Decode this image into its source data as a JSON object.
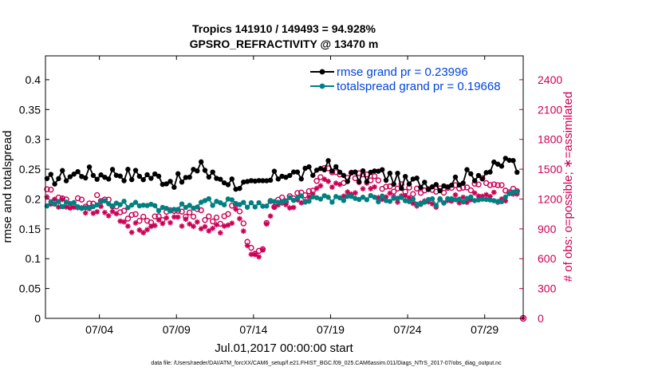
{
  "chart_data": {
    "type": "line",
    "title_line1": "Tropics 141910 / 149493 = 94.928%",
    "title_line2": "GPSRO_REFRACTIVITY @ 13470 m",
    "xlabel": "Jul.01,2017 00:00:00 start",
    "ylabel_left": "rmse and totalspread",
    "ylabel_right": "# of obs: o=possible; ∗=assimilated",
    "footnote": "data file: /Users/raeder/DAI/ATM_forcXX/CAM6_setup/f.e21.FHIST_BGC.f09_025.CAM6assim.011/Diags_NTrS_2017-07/obs_diag_output.nc",
    "x_range_days": [
      0.5,
      31.5
    ],
    "x_ticks": [
      {
        "day": 4,
        "label": "07/04"
      },
      {
        "day": 9,
        "label": "07/09"
      },
      {
        "day": 14,
        "label": "07/14"
      },
      {
        "day": 19,
        "label": "07/19"
      },
      {
        "day": 24,
        "label": "07/24"
      },
      {
        "day": 29,
        "label": "07/29"
      }
    ],
    "y_left": {
      "range": [
        0,
        0.44
      ],
      "ticks": [
        "0",
        "0.05",
        "0.1",
        "0.15",
        "0.2",
        "0.25",
        "0.3",
        "0.35",
        "0.4"
      ]
    },
    "y_right": {
      "range": [
        0,
        2640
      ],
      "ticks": [
        "0",
        "300",
        "600",
        "900",
        "1200",
        "1500",
        "1800",
        "2100",
        "2400"
      ]
    },
    "colors": {
      "rmse": "#000000",
      "spread": "#008080",
      "obs": "#cc0055",
      "legend_text": "#0044dd"
    },
    "series": [
      {
        "name": "rmse",
        "legend": "rmse grand pr = 0.23996",
        "axis": "left",
        "key_days": [
          0.6,
          1,
          2,
          3,
          4,
          5,
          6,
          7,
          8,
          9,
          10,
          10.6,
          11,
          12,
          13,
          14,
          15,
          16,
          17,
          18,
          18.6,
          19,
          20,
          21,
          22,
          23,
          24,
          25,
          26,
          27,
          28,
          29,
          30,
          30.6,
          31.2
        ],
        "key_values": [
          0.225,
          0.235,
          0.24,
          0.245,
          0.24,
          0.245,
          0.24,
          0.24,
          0.235,
          0.23,
          0.235,
          0.265,
          0.24,
          0.235,
          0.225,
          0.22,
          0.23,
          0.245,
          0.24,
          0.245,
          0.26,
          0.25,
          0.24,
          0.235,
          0.245,
          0.235,
          0.225,
          0.23,
          0.225,
          0.23,
          0.24,
          0.245,
          0.255,
          0.27,
          0.235
        ]
      },
      {
        "name": "totalspread",
        "legend": "totalspread grand pr = 0.19668",
        "axis": "left",
        "key_days": [
          0.6,
          1,
          2,
          3,
          4,
          5,
          6,
          7,
          8,
          9,
          10,
          11,
          12,
          13,
          14,
          15,
          16,
          17,
          18,
          19,
          20,
          21,
          22,
          23,
          24,
          25,
          26,
          27,
          28,
          29,
          30,
          31.2
        ],
        "key_values": [
          0.19,
          0.19,
          0.19,
          0.19,
          0.19,
          0.195,
          0.19,
          0.19,
          0.185,
          0.185,
          0.19,
          0.195,
          0.195,
          0.195,
          0.19,
          0.195,
          0.195,
          0.2,
          0.2,
          0.2,
          0.2,
          0.2,
          0.2,
          0.2,
          0.195,
          0.195,
          0.195,
          0.195,
          0.2,
          0.2,
          0.2,
          0.21
        ]
      },
      {
        "name": "obs possible",
        "marker": "o",
        "axis": "right",
        "key_days": [
          0.6,
          1,
          2,
          3,
          4,
          5,
          6,
          7,
          8,
          9,
          10,
          11,
          12,
          13,
          13.6,
          14,
          14.6,
          15,
          16,
          17,
          18,
          18.8,
          19,
          20,
          21,
          22,
          23,
          24,
          25,
          26,
          27,
          28,
          29,
          30,
          31.2
        ],
        "key_values": [
          1260,
          1230,
          1170,
          1160,
          1210,
          1140,
          1010,
          990,
          1030,
          1080,
          1070,
          1030,
          950,
          1180,
          800,
          640,
          700,
          1130,
          1210,
          1240,
          1320,
          1520,
          1450,
          1390,
          1450,
          1380,
          1310,
          1300,
          1290,
          1260,
          1300,
          1340,
          1370,
          1320,
          1240
        ]
      },
      {
        "name": "obs assimilated",
        "marker": "*",
        "axis": "right",
        "key_days": [
          0.6,
          1,
          2,
          3,
          4,
          5,
          6,
          7,
          8,
          9,
          10,
          11,
          12,
          13,
          13.6,
          14,
          14.6,
          15,
          16,
          17,
          18,
          18.8,
          19,
          20,
          21,
          22,
          23,
          24,
          25,
          26,
          27,
          28,
          29,
          30,
          31.2
        ],
        "key_values": [
          1240,
          1180,
          1120,
          1100,
          1110,
          1060,
          910,
          910,
          940,
          990,
          960,
          930,
          860,
          1110,
          740,
          600,
          650,
          1070,
          1130,
          1170,
          1230,
          1410,
          1340,
          1270,
          1330,
          1260,
          1200,
          1190,
          1180,
          1150,
          1200,
          1220,
          1250,
          1210,
          1210
        ]
      }
    ],
    "extra_point": {
      "day": 31.5,
      "value": 0,
      "axis": "right"
    }
  }
}
